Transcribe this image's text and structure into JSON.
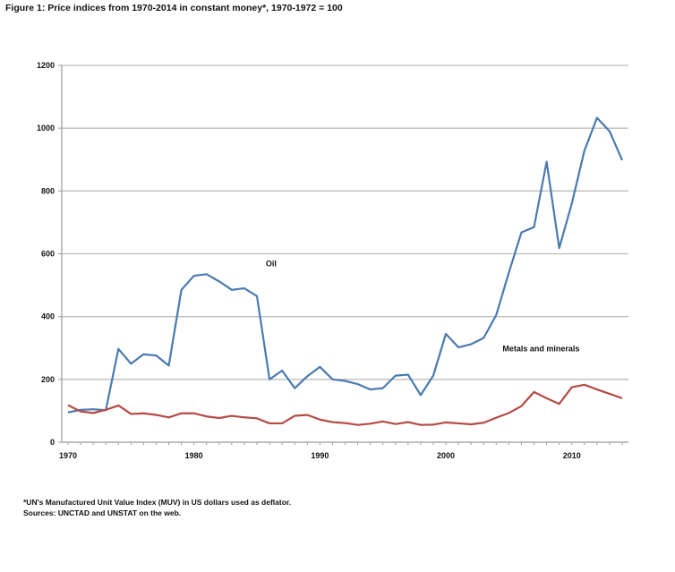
{
  "chart_data": {
    "type": "line",
    "title": "Figure 1: Price indices from 1970-2014 in constant money*, 1970-1972 = 100",
    "xlabel": "",
    "ylabel": "",
    "ylim": [
      0,
      1200
    ],
    "xlim": [
      1970,
      2014
    ],
    "grid": true,
    "yticks": [
      0,
      200,
      400,
      600,
      800,
      1000,
      1200
    ],
    "xticks": [
      1970,
      1980,
      1990,
      2000,
      2010
    ],
    "x": [
      1970,
      1971,
      1972,
      1973,
      1974,
      1975,
      1976,
      1977,
      1978,
      1979,
      1980,
      1981,
      1982,
      1983,
      1984,
      1985,
      1986,
      1987,
      1988,
      1989,
      1990,
      1991,
      1992,
      1993,
      1994,
      1995,
      1996,
      1997,
      1998,
      1999,
      2000,
      2001,
      2002,
      2003,
      2004,
      2005,
      2006,
      2007,
      2008,
      2009,
      2010,
      2011,
      2012,
      2013,
      2014
    ],
    "series": [
      {
        "name": "Oil",
        "color": "#4a7ab0",
        "values": [
          95,
          103,
          105,
          102,
          297,
          250,
          280,
          276,
          244,
          485,
          530,
          535,
          512,
          485,
          490,
          465,
          200,
          228,
          172,
          210,
          240,
          200,
          195,
          185,
          168,
          172,
          212,
          215,
          150,
          212,
          345,
          302,
          312,
          332,
          405,
          540,
          668,
          685,
          893,
          618,
          760,
          928,
          1033,
          990,
          898
        ]
      },
      {
        "name": "Metals and minerals",
        "color": "#b54a45",
        "values": [
          118,
          98,
          93,
          103,
          117,
          90,
          92,
          87,
          79,
          92,
          92,
          82,
          77,
          84,
          79,
          76,
          60,
          60,
          84,
          87,
          72,
          64,
          61,
          55,
          59,
          66,
          58,
          64,
          55,
          56,
          63,
          60,
          57,
          62,
          78,
          93,
          115,
          160,
          140,
          122,
          175,
          183,
          168,
          154,
          140
        ]
      }
    ],
    "annotations": [
      {
        "text": "Oil",
        "x": 1985.7,
        "y": 560
      },
      {
        "text": "Metals and minerals",
        "x": 2004.5,
        "y": 290
      }
    ],
    "legend": "none"
  },
  "notes": {
    "line1": "*UN's  Manufactured  Unit Value Index (MUV) in US dollars used as deflator.",
    "line2": "Sources: UNCTAD and UNSTAT on the web."
  }
}
